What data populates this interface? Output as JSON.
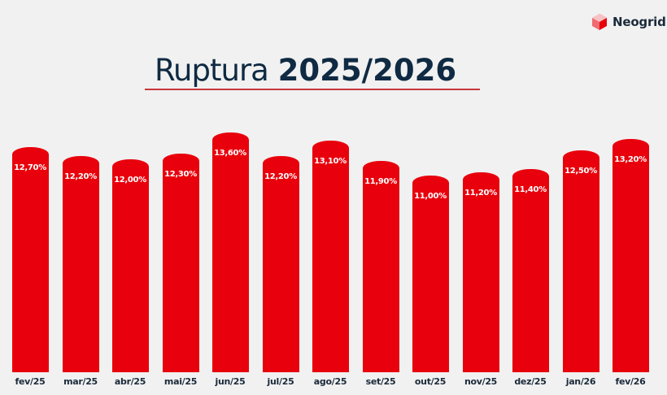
{
  "brand": {
    "name": "Neogrid",
    "color": "#e8000c",
    "text_color": "#1b2a3a"
  },
  "header": {
    "title_light": "Ruptura",
    "title_bold": "2025/2026",
    "title_color": "#0f2a42",
    "rule_color": "#c9353d"
  },
  "chart_data": {
    "type": "bar",
    "title": "Ruptura 2025/2026",
    "xlabel": "",
    "ylabel": "",
    "categories": [
      "fev/25",
      "mar/25",
      "abr/25",
      "mai/25",
      "jun/25",
      "jul/25",
      "ago/25",
      "set/25",
      "out/25",
      "nov/25",
      "dez/25",
      "jan/26",
      "fev/26"
    ],
    "values": [
      12.7,
      12.2,
      12.0,
      12.3,
      13.6,
      12.2,
      13.1,
      11.9,
      11.0,
      11.2,
      11.4,
      12.5,
      13.2
    ],
    "value_labels": [
      "12,70%",
      "12,20%",
      "12,00%",
      "12,30%",
      "13,60%",
      "12,20%",
      "13,10%",
      "11,90%",
      "11,00%",
      "11,20%",
      "11,40%",
      "12,50%",
      "13,20%"
    ],
    "unit": "%",
    "bar_color": "#e8000c",
    "grid": false,
    "legend": null
  }
}
